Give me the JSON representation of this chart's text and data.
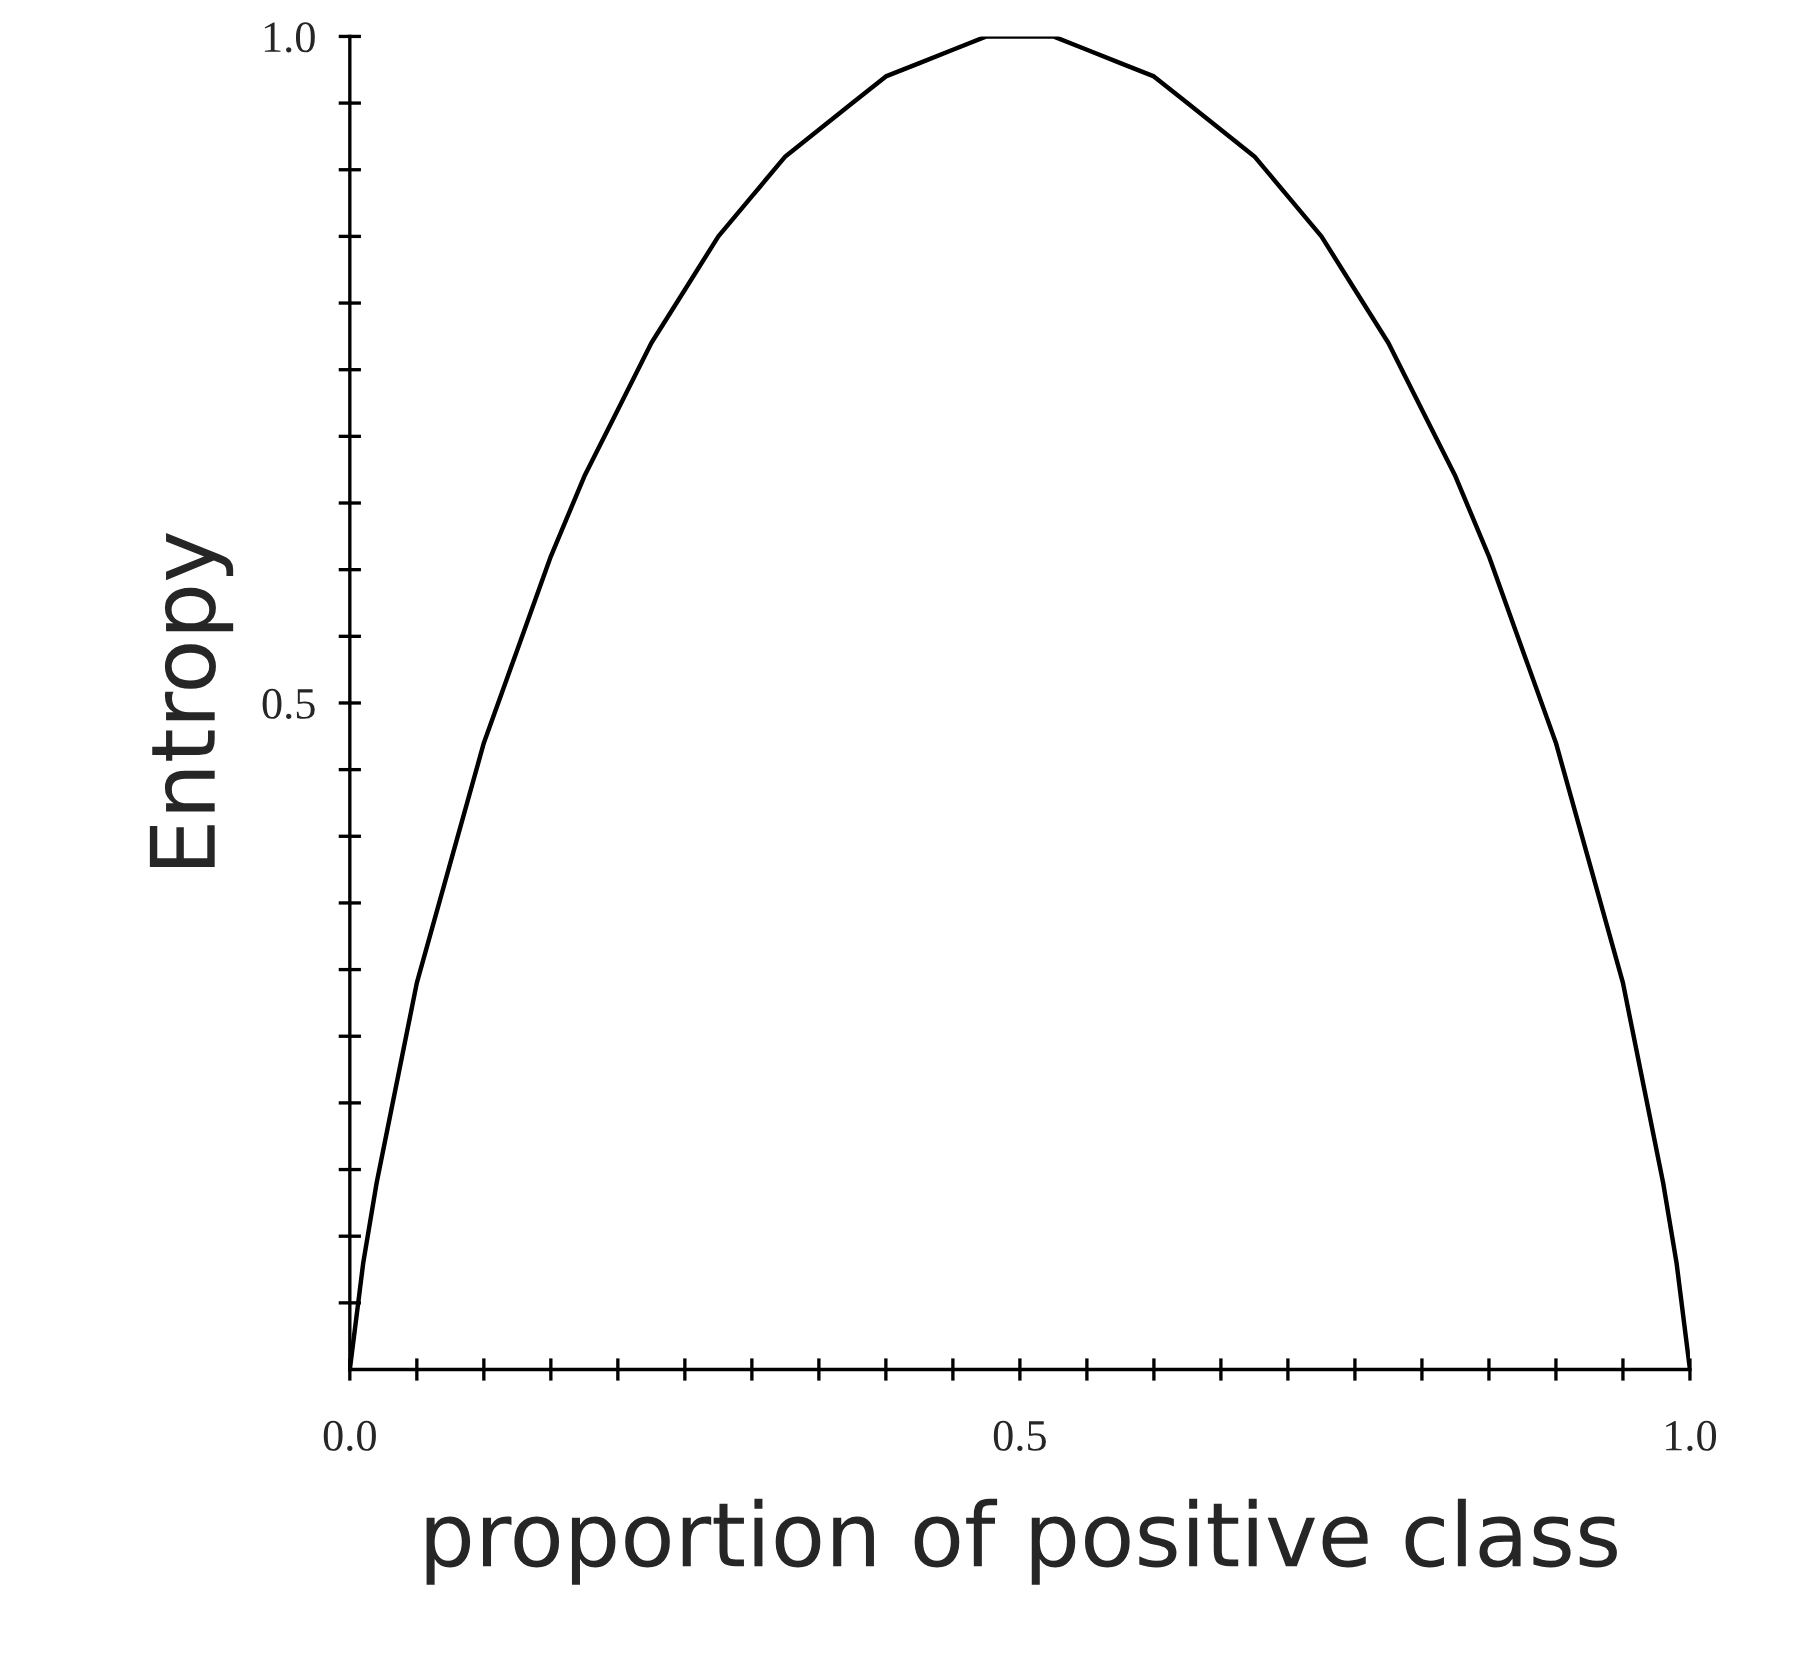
{
  "chart_data": {
    "type": "line",
    "xlabel": "proportion of positive class",
    "ylabel": "Entropy",
    "x": [
      0,
      0.01,
      0.02,
      0.03,
      0.05,
      0.075,
      0.1,
      0.125,
      0.15,
      0.175,
      0.2,
      0.225,
      0.25,
      0.275,
      0.3,
      0.325,
      0.35,
      0.375,
      0.4,
      0.425,
      0.45,
      0.475,
      0.5,
      0.525,
      0.55,
      0.575,
      0.6,
      0.625,
      0.65,
      0.675,
      0.7,
      0.725,
      0.75,
      0.775,
      0.8,
      0.825,
      0.85,
      0.875,
      0.9,
      0.925,
      0.95,
      0.97,
      0.98,
      0.99,
      1
    ],
    "series": [
      {
        "color": "#000000",
        "values": [
          0,
          0.08,
          0.14,
          0.19,
          0.29,
          0.38,
          0.47,
          0.54,
          0.61,
          0.67,
          0.72,
          0.77,
          0.81,
          0.85,
          0.88,
          0.91,
          0.93,
          0.95,
          0.97,
          0.98,
          0.99,
          1,
          1,
          1,
          0.99,
          0.98,
          0.97,
          0.95,
          0.93,
          0.91,
          0.88,
          0.85,
          0.81,
          0.77,
          0.72,
          0.67,
          0.61,
          0.54,
          0.47,
          0.38,
          0.29,
          0.19,
          0.14,
          0.08,
          0
        ]
      }
    ],
    "xlim": [
      0,
      1
    ],
    "ylim": [
      0,
      1
    ],
    "xticks": [
      {
        "value": 0,
        "label": "0.0"
      },
      {
        "value": 0.05,
        "label": null
      },
      {
        "value": 0.1,
        "label": null
      },
      {
        "value": 0.15,
        "label": null
      },
      {
        "value": 0.2,
        "label": null
      },
      {
        "value": 0.25,
        "label": null
      },
      {
        "value": 0.3,
        "label": null
      },
      {
        "value": 0.35,
        "label": null
      },
      {
        "value": 0.4,
        "label": null
      },
      {
        "value": 0.45,
        "label": null
      },
      0.5,
      {
        "value": 0.55,
        "label": null
      },
      {
        "value": 0.6,
        "label": null
      },
      {
        "value": 0.65,
        "label": null
      },
      {
        "value": 0.7,
        "label": null
      },
      {
        "value": 0.75,
        "label": null
      },
      {
        "value": 0.8,
        "label": null
      },
      {
        "value": 0.85,
        "label": null
      },
      {
        "value": 0.9,
        "label": null
      },
      {
        "value": 0.95,
        "label": null
      },
      {
        "value": 1,
        "label": "1.0"
      }
    ],
    "yticks": [
      {
        "value": 0.05,
        "label": null
      },
      {
        "value": 0.1,
        "label": null
      },
      {
        "value": 0.15,
        "label": null
      },
      {
        "value": 0.2,
        "label": null
      },
      {
        "value": 0.25,
        "label": null
      },
      {
        "value": 0.3,
        "label": null
      },
      {
        "value": 0.35,
        "label": null
      },
      {
        "value": 0.4,
        "label": null
      },
      {
        "value": 0.45,
        "label": null
      },
      0.5,
      {
        "value": 0.55,
        "label": null
      },
      {
        "value": 0.6,
        "label": null
      },
      {
        "value": 0.65,
        "label": null
      },
      {
        "value": 0.7,
        "label": null
      },
      {
        "value": 0.75,
        "label": null
      },
      {
        "value": 0.8,
        "label": null
      },
      {
        "value": 0.85,
        "label": null
      },
      {
        "value": 0.9,
        "label": null
      },
      {
        "value": 0.95,
        "label": null
      },
      {
        "value": 1,
        "label": "1.0"
      }
    ],
    "grid": false,
    "legend": false,
    "marker": "none",
    "line_style": "solid"
  }
}
